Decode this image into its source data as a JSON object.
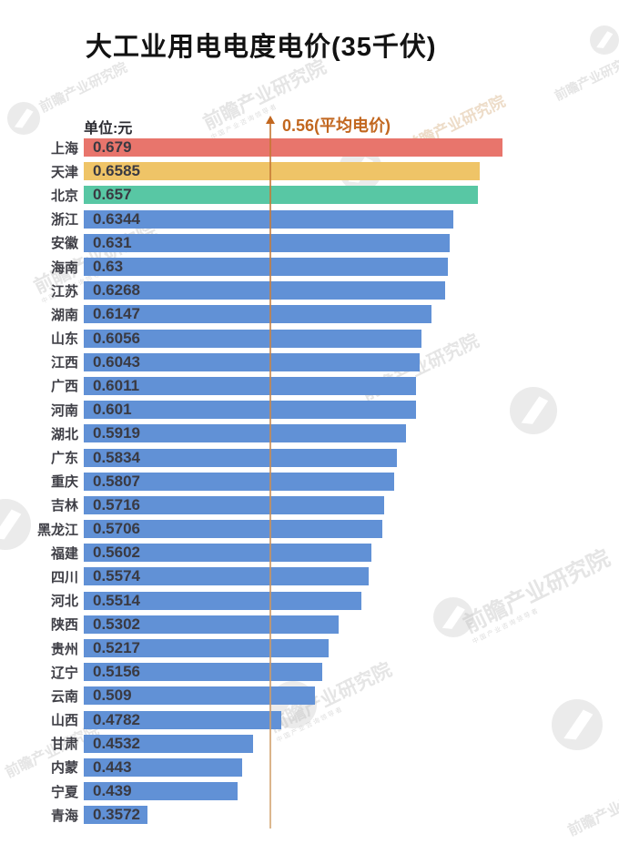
{
  "title": "大工业用电电度电价(35千伏)",
  "unit_label": "单位:元",
  "average_label": "0.56(平均电价)",
  "watermark_brand": "前瞻产业研究院",
  "colors": {
    "title_text": "#121212",
    "unit_text": "#2d2d33",
    "annotation_orange": "#c2671f",
    "marker_line_tan": "#cf9055",
    "label_text": "#3f3f46",
    "value_text": "#3a3a42",
    "bar_red": "#E8756C",
    "bar_yellow": "#EFC467",
    "bar_green": "#58C7A4",
    "bar_blue": "#6191D6",
    "background": "#ffffff"
  },
  "chart_data": {
    "type": "bar",
    "orientation": "horizontal",
    "title": "大工业用电电度电价(35千伏)",
    "unit": "元",
    "grid": false,
    "legend": false,
    "value_labels_inside_bars": true,
    "xlim": [
      0.2994,
      0.68
    ],
    "categories": [
      "上海",
      "天津",
      "北京",
      "浙江",
      "安徽",
      "海南",
      "江苏",
      "湖南",
      "山东",
      "江西",
      "广西",
      "河南",
      "湖北",
      "广东",
      "重庆",
      "吉林",
      "黑龙江",
      "福建",
      "四川",
      "河北",
      "陕西",
      "贵州",
      "辽宁",
      "云南",
      "山西",
      "甘肃",
      "内蒙",
      "宁夏",
      "青海"
    ],
    "values": [
      0.679,
      0.6585,
      0.657,
      0.6344,
      0.631,
      0.63,
      0.6268,
      0.6147,
      0.6056,
      0.6043,
      0.6011,
      0.601,
      0.5919,
      0.5834,
      0.5807,
      0.5716,
      0.5706,
      0.5602,
      0.5574,
      0.5514,
      0.5302,
      0.5217,
      0.5156,
      0.509,
      0.4782,
      0.4532,
      0.443,
      0.439,
      0.3572
    ],
    "highlight_colors": {
      "上海": "#E8756C",
      "天津": "#EFC467",
      "北京": "#58C7A4"
    },
    "default_bar_color": "#6191D6",
    "average_line": {
      "value": 0.56,
      "label": "0.56(平均电价)",
      "color": "#c2671f",
      "style": "vertical-arrow-line"
    }
  }
}
